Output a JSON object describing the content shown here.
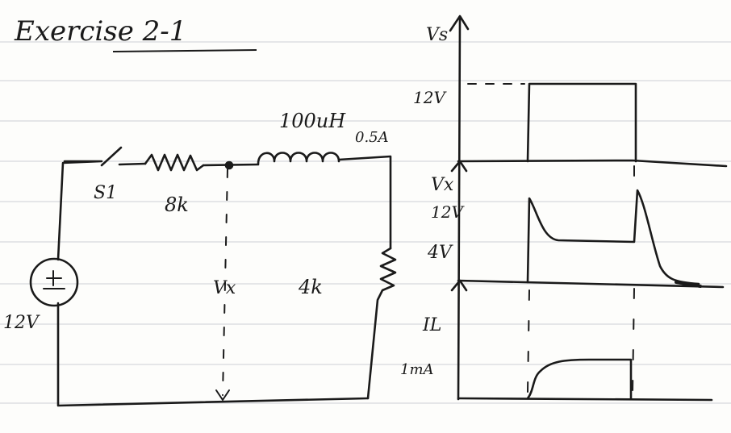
{
  "title": "Exercise 2-1",
  "circuit": {
    "source": "12V",
    "switch": "S1",
    "resistor1": "8k",
    "inductor": "100uH",
    "current_rating": "0.5A",
    "resistor2": "4k",
    "node_voltage": "Vx"
  },
  "graphs": {
    "vs": {
      "label": "Vs",
      "level": "12V"
    },
    "vx": {
      "label": "Vx",
      "peak": "12V",
      "steady": "4V"
    },
    "il": {
      "label": "IL",
      "level": "1mA"
    }
  },
  "colors": {
    "ink": "#1a1a1a",
    "paper": "#fdfdfb",
    "rule": "#d7d9dc"
  }
}
